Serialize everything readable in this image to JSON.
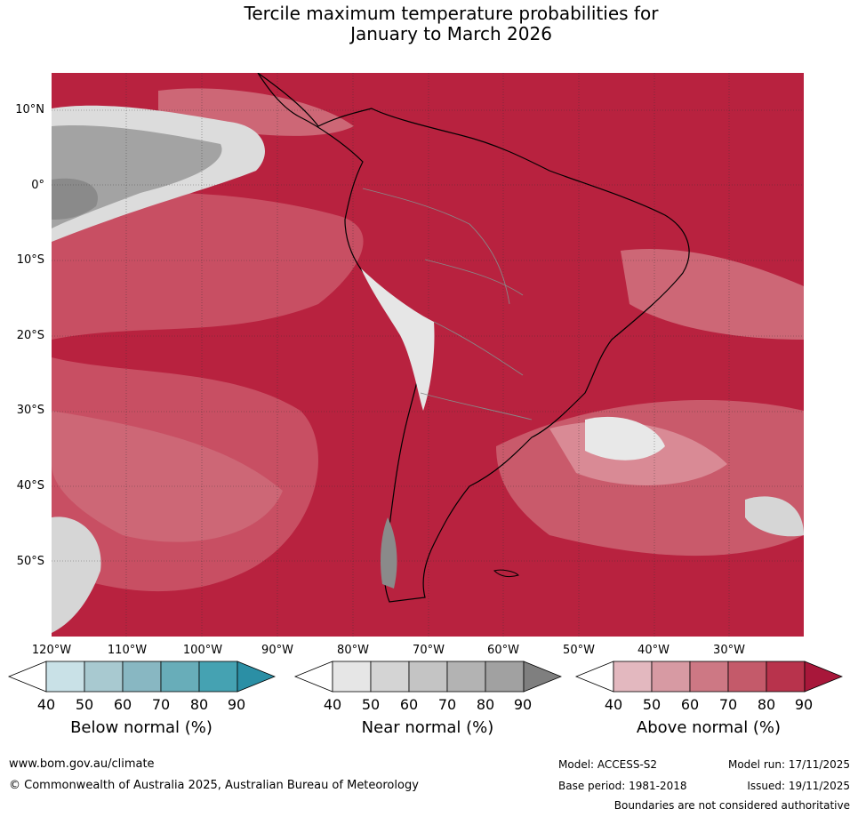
{
  "title_line1": "Tercile maximum temperature probabilities for",
  "title_line2": "January to March 2026",
  "lat_labels": [
    "10°N",
    "0°",
    "10°S",
    "20°S",
    "30°S",
    "40°S",
    "50°S"
  ],
  "lon_labels": [
    "120°W",
    "110°W",
    "100°W",
    "90°W",
    "80°W",
    "70°W",
    "60°W",
    "50°W",
    "40°W",
    "30°W"
  ],
  "colorbars": [
    {
      "title": "Below normal (%)",
      "ticks": [
        "40",
        "50",
        "60",
        "70",
        "80",
        "90"
      ],
      "colors": [
        "#ffffff",
        "#c9e1e7",
        "#a8c9d0",
        "#88b7c2",
        "#68adb9",
        "#45a2b2",
        "#2b8fa5"
      ]
    },
    {
      "title": "Near normal (%)",
      "ticks": [
        "40",
        "50",
        "60",
        "70",
        "80",
        "90"
      ],
      "colors": [
        "#ffffff",
        "#e6e6e6",
        "#d4d4d4",
        "#c4c4c4",
        "#b3b3b3",
        "#a1a1a1",
        "#7f7f7f"
      ]
    },
    {
      "title": "Above normal (%)",
      "ticks": [
        "40",
        "50",
        "60",
        "70",
        "80",
        "90"
      ],
      "colors": [
        "#ffffff",
        "#e3b8bf",
        "#d79aa3",
        "#cd7884",
        "#c45a6a",
        "#b8334c",
        "#a8173a"
      ]
    }
  ],
  "footer": {
    "url": "www.bom.gov.au/climate",
    "copyright": "© Commonwealth of Australia 2025, Australian Bureau of Meteorology",
    "model": "Model: ACCESS-S2",
    "base_period": "Base period: 1981-2018",
    "model_run": "Model run: 17/11/2025",
    "issued": "Issued: 19/11/2025",
    "disclaimer": "Boundaries are not considered authoritative"
  }
}
